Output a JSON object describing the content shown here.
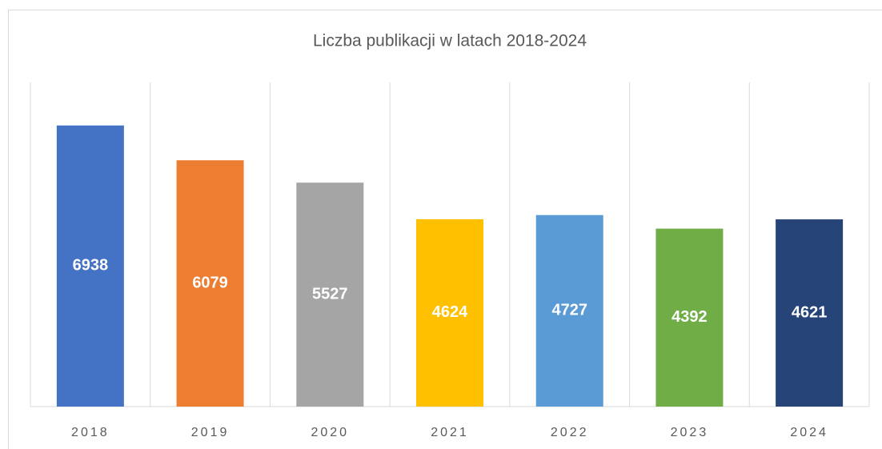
{
  "chart_data": {
    "type": "bar",
    "title": "Liczba publikacji w latach 2018-2024",
    "categories": [
      "2018",
      "2019",
      "2020",
      "2021",
      "2022",
      "2023",
      "2024"
    ],
    "values": [
      6938,
      6079,
      5527,
      4624,
      4727,
      4392,
      4621
    ],
    "colors": [
      "#4472c4",
      "#ed7d31",
      "#a5a5a5",
      "#ffc000",
      "#5b9bd5",
      "#70ad47",
      "#264478"
    ],
    "ylim": [
      0,
      8000
    ],
    "grid": true
  }
}
